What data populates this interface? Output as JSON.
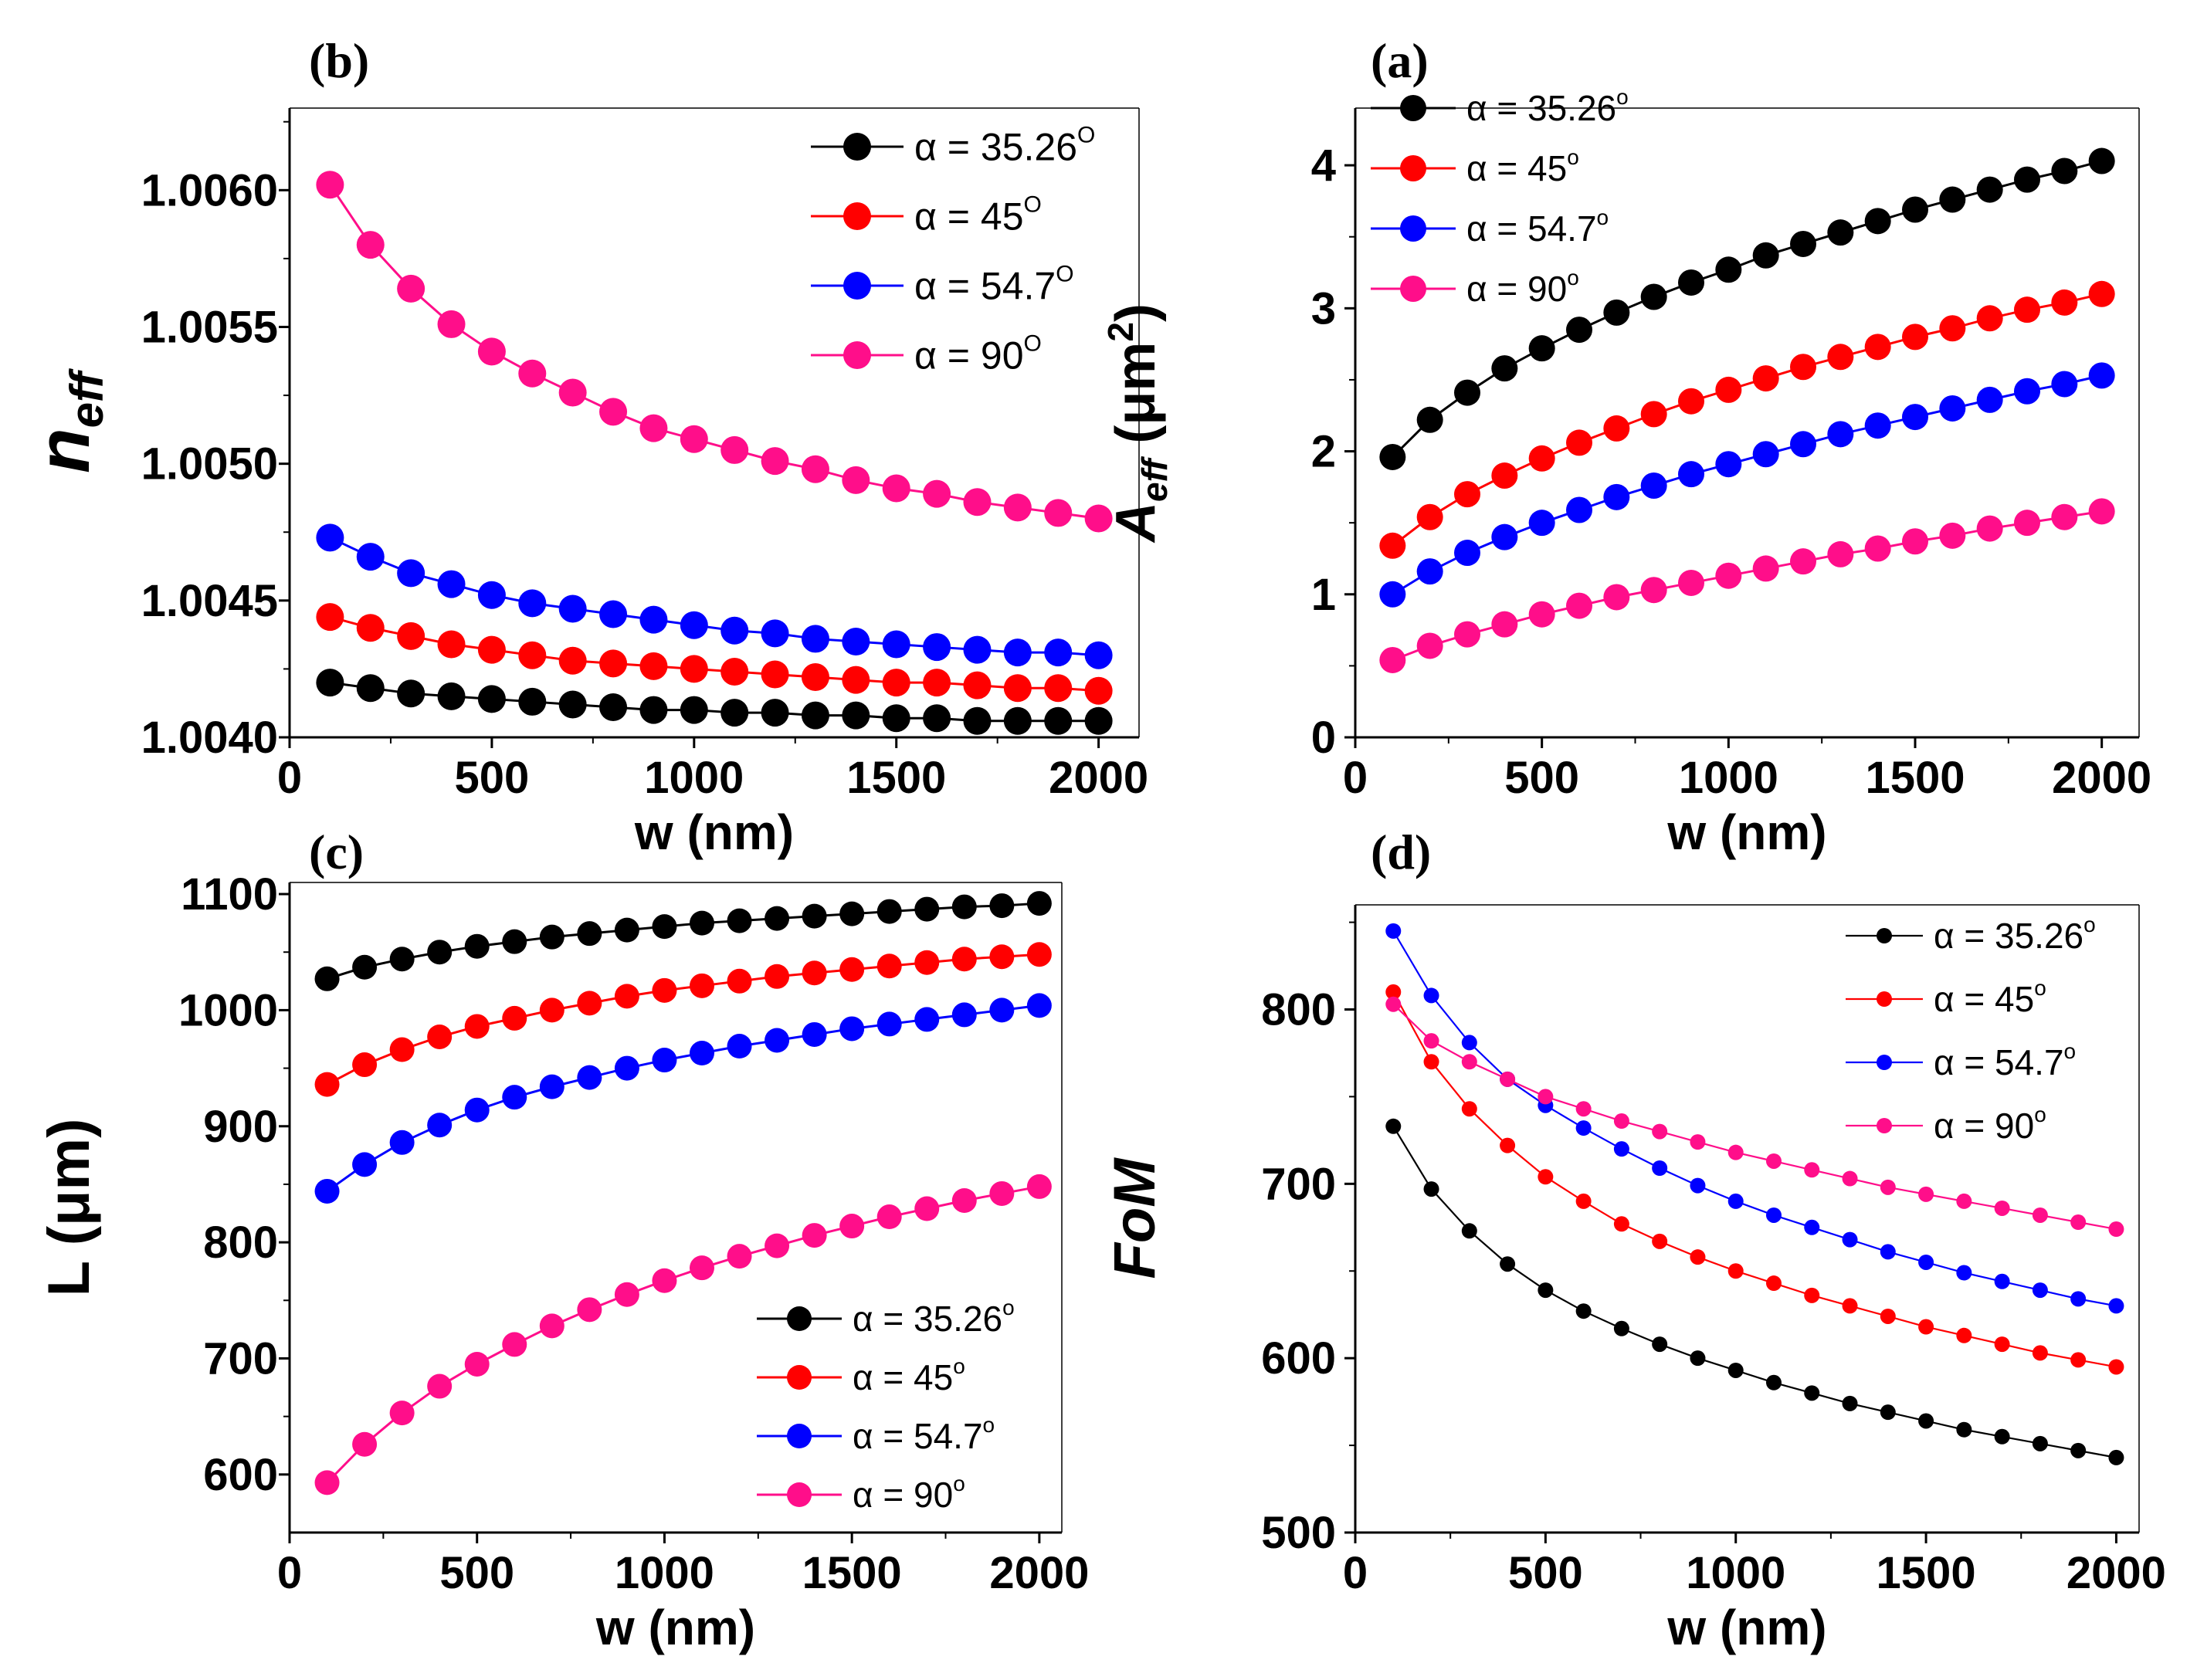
{
  "figure": {
    "w_values": [
      100,
      200,
      300,
      400,
      500,
      600,
      700,
      800,
      900,
      1000,
      1100,
      1200,
      1300,
      1400,
      1500,
      1600,
      1700,
      1800,
      1900,
      2000
    ]
  },
  "chart_data": [
    {
      "id": "b",
      "type": "line",
      "panel_label": "(b)",
      "xlabel": "w (nm)",
      "ylabel": "n",
      "ylabel_sub": "eff",
      "xlim": [
        0,
        2100
      ],
      "ylim": [
        1.004,
        1.0063
      ],
      "xticks": [
        0,
        500,
        1000,
        1500,
        2000
      ],
      "xtick_labels": [
        "0",
        "500",
        "1000",
        "1500",
        "2000"
      ],
      "yticks": [
        1.004,
        1.0045,
        1.005,
        1.0055,
        1.006
      ],
      "ytick_labels": [
        "1.0040",
        "1.0045",
        "1.0050",
        "1.0055",
        "1.0060"
      ],
      "legend_position": "top-right",
      "series": [
        {
          "name": "α = 35.26",
          "sup": "O",
          "color": "#000000",
          "values": [
            1.0042,
            1.00418,
            1.00416,
            1.00415,
            1.00414,
            1.00413,
            1.00412,
            1.00411,
            1.0041,
            1.0041,
            1.00409,
            1.00409,
            1.00408,
            1.00408,
            1.00407,
            1.00407,
            1.00406,
            1.00406,
            1.00406,
            1.00406
          ]
        },
        {
          "name": "α = 45",
          "sup": "O",
          "color": "#ff0000",
          "values": [
            1.00444,
            1.0044,
            1.00437,
            1.00434,
            1.00432,
            1.0043,
            1.00428,
            1.00427,
            1.00426,
            1.00425,
            1.00424,
            1.00423,
            1.00422,
            1.00421,
            1.0042,
            1.0042,
            1.00419,
            1.00418,
            1.00418,
            1.00417
          ]
        },
        {
          "name": "α = 54.7",
          "sup": "O",
          "color": "#0000ff",
          "values": [
            1.00473,
            1.00466,
            1.0046,
            1.00456,
            1.00452,
            1.00449,
            1.00447,
            1.00445,
            1.00443,
            1.00441,
            1.00439,
            1.00438,
            1.00436,
            1.00435,
            1.00434,
            1.00433,
            1.00432,
            1.00431,
            1.00431,
            1.0043
          ]
        },
        {
          "name": "α = 90",
          "sup": "O",
          "color": "#ff0e8a",
          "values": [
            1.00602,
            1.0058,
            1.00564,
            1.00551,
            1.00541,
            1.00533,
            1.00526,
            1.00519,
            1.00513,
            1.00509,
            1.00505,
            1.00501,
            1.00498,
            1.00494,
            1.00491,
            1.00489,
            1.00486,
            1.00484,
            1.00482,
            1.0048
          ]
        }
      ]
    },
    {
      "id": "a",
      "type": "line",
      "panel_label": "(a)",
      "xlabel": "w (nm)",
      "ylabel": "A",
      "ylabel_sub": "eff",
      "ylabel_unit": "(μm",
      "ylabel_unit_sup": "2",
      "ylabel_unit_end": ")",
      "xlim": [
        0,
        2100
      ],
      "ylim": [
        0,
        4.4
      ],
      "xticks": [
        0,
        500,
        1000,
        1500,
        2000
      ],
      "xtick_labels": [
        "0",
        "500",
        "1000",
        "1500",
        "2000"
      ],
      "yticks": [
        0,
        1,
        2,
        3,
        4
      ],
      "ytick_labels": [
        "0",
        "1",
        "2",
        "3",
        "4"
      ],
      "legend_position": "top-left",
      "series": [
        {
          "name": "α = 35.26",
          "sup": "o",
          "color": "#000000",
          "values": [
            1.96,
            2.22,
            2.41,
            2.58,
            2.72,
            2.85,
            2.97,
            3.08,
            3.18,
            3.27,
            3.37,
            3.45,
            3.53,
            3.61,
            3.69,
            3.76,
            3.83,
            3.9,
            3.96,
            4.03
          ]
        },
        {
          "name": "α = 45",
          "sup": "o",
          "color": "#ff0000",
          "values": [
            1.34,
            1.54,
            1.7,
            1.83,
            1.95,
            2.06,
            2.16,
            2.26,
            2.35,
            2.43,
            2.51,
            2.59,
            2.66,
            2.73,
            2.8,
            2.86,
            2.93,
            2.99,
            3.04,
            3.1
          ]
        },
        {
          "name": "α = 54.7",
          "sup": "o",
          "color": "#0000ff",
          "values": [
            1.0,
            1.16,
            1.29,
            1.4,
            1.5,
            1.59,
            1.68,
            1.76,
            1.84,
            1.91,
            1.98,
            2.05,
            2.12,
            2.18,
            2.24,
            2.3,
            2.36,
            2.42,
            2.47,
            2.53
          ]
        },
        {
          "name": "α = 90",
          "sup": "o",
          "color": "#ff0e8a",
          "values": [
            0.54,
            0.64,
            0.72,
            0.79,
            0.86,
            0.92,
            0.98,
            1.03,
            1.08,
            1.13,
            1.18,
            1.23,
            1.28,
            1.32,
            1.37,
            1.41,
            1.46,
            1.5,
            1.54,
            1.58
          ]
        }
      ]
    },
    {
      "id": "c",
      "type": "line",
      "panel_label": "(c)",
      "xlabel": "w (nm)",
      "ylabel": "L (μm)",
      "xlim": [
        0,
        2060
      ],
      "ylim": [
        550,
        1110
      ],
      "xticks": [
        0,
        500,
        1000,
        1500,
        2000
      ],
      "xtick_labels": [
        "0",
        "500",
        "1000",
        "1500",
        "2000"
      ],
      "yticks": [
        600,
        700,
        800,
        900,
        1000,
        1100
      ],
      "ytick_labels": [
        "600",
        "700",
        "800",
        "900",
        "1000",
        "1100"
      ],
      "legend_position": "bottom-right",
      "series": [
        {
          "name": "α = 35.26",
          "sup": "o",
          "color": "#000000",
          "values": [
            1027,
            1037,
            1044,
            1050,
            1055,
            1059,
            1063,
            1066,
            1069,
            1072,
            1075,
            1077,
            1079,
            1081,
            1083,
            1085,
            1087,
            1089,
            1090,
            1092
          ]
        },
        {
          "name": "α = 45",
          "sup": "o",
          "color": "#ff0000",
          "values": [
            936,
            953,
            966,
            977,
            986,
            993,
            1000,
            1006,
            1012,
            1017,
            1021,
            1025,
            1029,
            1032,
            1035,
            1038,
            1041,
            1044,
            1046,
            1048
          ]
        },
        {
          "name": "α = 54.7",
          "sup": "o",
          "color": "#0000ff",
          "values": [
            844,
            867,
            886,
            901,
            914,
            925,
            934,
            942,
            950,
            957,
            963,
            969,
            974,
            979,
            984,
            988,
            992,
            996,
            1000,
            1004
          ]
        },
        {
          "name": "α = 90",
          "sup": "o",
          "color": "#ff0e8a",
          "values": [
            593,
            626,
            653,
            676,
            695,
            712,
            728,
            742,
            755,
            767,
            778,
            788,
            797,
            806,
            814,
            822,
            829,
            836,
            842,
            848
          ]
        }
      ]
    },
    {
      "id": "d",
      "type": "line",
      "panel_label": "(d)",
      "xlabel": "w (nm)",
      "ylabel": "FoM",
      "xlim": [
        0,
        2060
      ],
      "ylim": [
        500,
        860
      ],
      "xticks": [
        0,
        500,
        1000,
        1500,
        2000
      ],
      "xtick_labels": [
        "0",
        "500",
        "1000",
        "1500",
        "2000"
      ],
      "yticks": [
        500,
        600,
        700,
        800
      ],
      "ytick_labels": [
        "500",
        "600",
        "700",
        "800"
      ],
      "legend_position": "top-right",
      "series": [
        {
          "name": "α = 35.26",
          "sup": "o",
          "color": "#000000",
          "values": [
            733,
            697,
            673,
            654,
            639,
            627,
            617,
            608,
            600,
            593,
            586,
            580,
            574,
            569,
            564,
            559,
            555,
            551,
            547,
            543
          ]
        },
        {
          "name": "α = 45",
          "sup": "o",
          "color": "#ff0000",
          "values": [
            810,
            770,
            743,
            722,
            704,
            690,
            677,
            667,
            658,
            650,
            643,
            636,
            630,
            624,
            618,
            613,
            608,
            603,
            599,
            595
          ]
        },
        {
          "name": "α = 54.7",
          "sup": "o",
          "color": "#0000ff",
          "values": [
            845,
            808,
            781,
            760,
            745,
            732,
            720,
            709,
            699,
            690,
            682,
            675,
            668,
            661,
            655,
            649,
            644,
            639,
            634,
            630
          ]
        },
        {
          "name": "α = 90",
          "sup": "o",
          "color": "#ff0e8a",
          "values": [
            803,
            782,
            770,
            760,
            750,
            743,
            736,
            730,
            724,
            718,
            713,
            708,
            703,
            698,
            694,
            690,
            686,
            682,
            678,
            674
          ]
        }
      ]
    }
  ]
}
